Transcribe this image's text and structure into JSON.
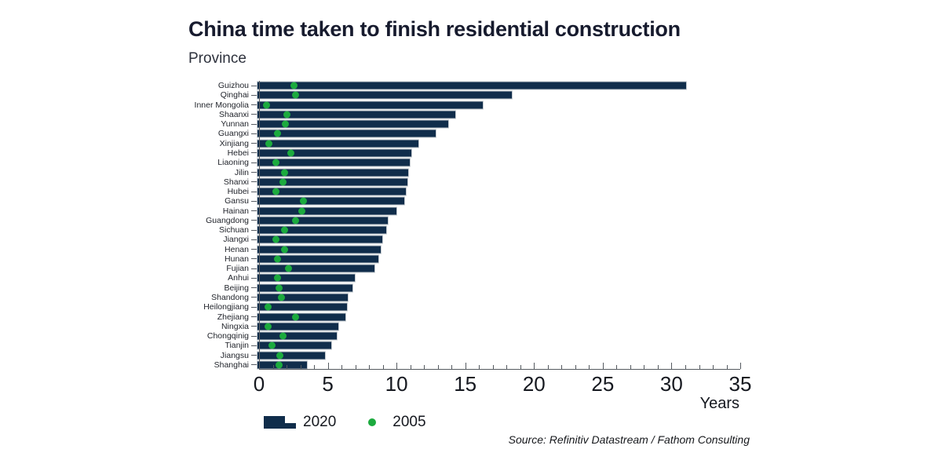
{
  "header": {
    "title": "China time taken to finish residential construction",
    "subtitle": "Province"
  },
  "axis": {
    "x_label": "Years",
    "x_ticks": [
      0,
      5,
      10,
      15,
      20,
      25,
      30,
      35
    ],
    "x_minor_step": 1,
    "x_max": 35
  },
  "legend": {
    "bar_label": "2020",
    "dot_label": "2005"
  },
  "source": "Source: Refinitiv Datastream / Fathom Consulting",
  "colors": {
    "bar_2020": "#102d4b",
    "dot_2005": "#1caa3e",
    "axis": "#555a60"
  },
  "chart_data": {
    "type": "bar",
    "orientation": "horizontal",
    "title": "China time taken to finish residential construction",
    "xlabel": "Years",
    "ylabel": "Province",
    "xlim": [
      0,
      35
    ],
    "grid": false,
    "legend_position": "bottom-left",
    "categories": [
      "Guizhou",
      "Qinghai",
      "Inner Mongolia",
      "Shaanxi",
      "Yunnan",
      "Guangxi",
      "Xinjiang",
      "Hebei",
      "Liaoning",
      "Jilin",
      "Shanxi",
      "Hubei",
      "Gansu",
      "Hainan",
      "Guangdong",
      "Sichuan",
      "Jiangxi",
      "Henan",
      "Hunan",
      "Fujian",
      "Anhui",
      "Beijing",
      "Shandong",
      "Heilongjiang",
      "Zhejiang",
      "Ningxia",
      "Chongqinig",
      "Tianjin",
      "Jiangsu",
      "Shanghai"
    ],
    "series": [
      {
        "name": "2020",
        "marker": "bar",
        "values": [
          31.3,
          18.6,
          16.5,
          14.5,
          14.0,
          13.1,
          11.8,
          11.3,
          11.2,
          11.1,
          11.0,
          10.9,
          10.8,
          10.2,
          9.6,
          9.5,
          9.2,
          9.1,
          8.9,
          8.6,
          7.2,
          7.0,
          6.7,
          6.6,
          6.5,
          6.0,
          5.9,
          5.5,
          5.0,
          3.7
        ]
      },
      {
        "name": "2005",
        "marker": "dot",
        "values": [
          2.7,
          2.8,
          0.7,
          2.2,
          2.1,
          1.5,
          0.9,
          2.5,
          1.4,
          2.0,
          1.9,
          1.4,
          3.4,
          3.3,
          2.8,
          2.0,
          1.4,
          2.0,
          1.5,
          2.3,
          1.5,
          1.6,
          1.8,
          0.8,
          2.8,
          0.8,
          1.9,
          1.1,
          1.7,
          1.6
        ]
      }
    ]
  }
}
